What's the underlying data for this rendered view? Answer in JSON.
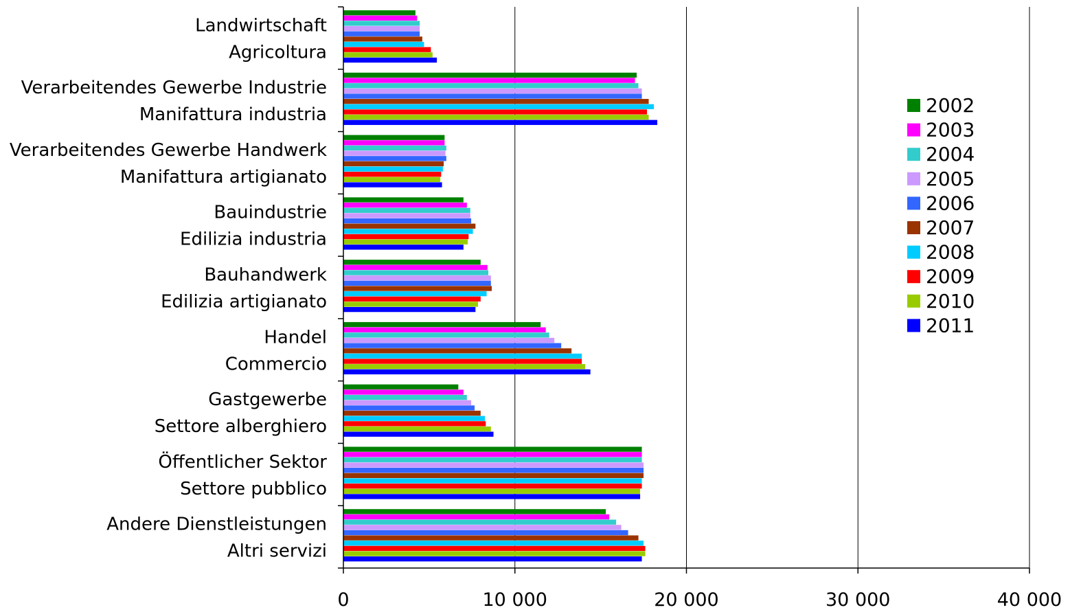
{
  "chart_data": {
    "type": "bar",
    "orientation": "horizontal",
    "categories": [
      [
        "Landwirtschaft",
        "Agricoltura"
      ],
      [
        "Verarbeitendes Gewerbe Industrie",
        "Manifattura industria"
      ],
      [
        "Verarbeitendes Gewerbe Handwerk",
        "Manifattura artigianato"
      ],
      [
        "Bauindustrie",
        "Edilizia industria"
      ],
      [
        "Bauhandwerk",
        "Edilizia artigianato"
      ],
      [
        "Handel",
        "Commercio"
      ],
      [
        "Gastgewerbe",
        "Settore alberghiero"
      ],
      [
        "Öffentlicher Sektor",
        "Settore pubblico"
      ],
      [
        "Andere Dienstleistungen",
        "Altri servizi"
      ]
    ],
    "series": [
      {
        "name": "2002",
        "color": "#008000",
        "values": [
          4200,
          17100,
          5900,
          7000,
          8000,
          11500,
          6700,
          17400,
          15300
        ]
      },
      {
        "name": "2003",
        "color": "#ff00ff",
        "values": [
          4300,
          17000,
          5900,
          7200,
          8400,
          11800,
          7000,
          17400,
          15500
        ]
      },
      {
        "name": "2004",
        "color": "#33cccc",
        "values": [
          4450,
          17200,
          6000,
          7400,
          8450,
          12000,
          7200,
          17400,
          15900
        ]
      },
      {
        "name": "2005",
        "color": "#cc99ff",
        "values": [
          4450,
          17400,
          5950,
          7400,
          8600,
          12300,
          7450,
          17500,
          16200
        ]
      },
      {
        "name": "2006",
        "color": "#3366ff",
        "values": [
          4450,
          17400,
          6000,
          7450,
          8600,
          12700,
          7650,
          17500,
          16600
        ]
      },
      {
        "name": "2007",
        "color": "#993300",
        "values": [
          4600,
          17800,
          5850,
          7700,
          8650,
          13300,
          8000,
          17500,
          17200
        ]
      },
      {
        "name": "2008",
        "color": "#00ccff",
        "values": [
          4700,
          18100,
          5800,
          7550,
          8350,
          13900,
          8250,
          17400,
          17500
        ]
      },
      {
        "name": "2009",
        "color": "#ff0000",
        "values": [
          5100,
          17700,
          5700,
          7300,
          8000,
          13900,
          8300,
          17400,
          17600
        ]
      },
      {
        "name": "2010",
        "color": "#99cc00",
        "values": [
          5200,
          17800,
          5650,
          7250,
          7850,
          14100,
          8600,
          17300,
          17600
        ]
      },
      {
        "name": "2011",
        "color": "#0000ff",
        "values": [
          5450,
          18300,
          5750,
          7000,
          7700,
          14400,
          8750,
          17300,
          17400
        ]
      }
    ],
    "xlim": [
      0,
      40000
    ],
    "xticks": [
      "0",
      "10 000",
      "20 000",
      "30 000",
      "40 000"
    ],
    "grid": true,
    "legend_position": "right"
  }
}
